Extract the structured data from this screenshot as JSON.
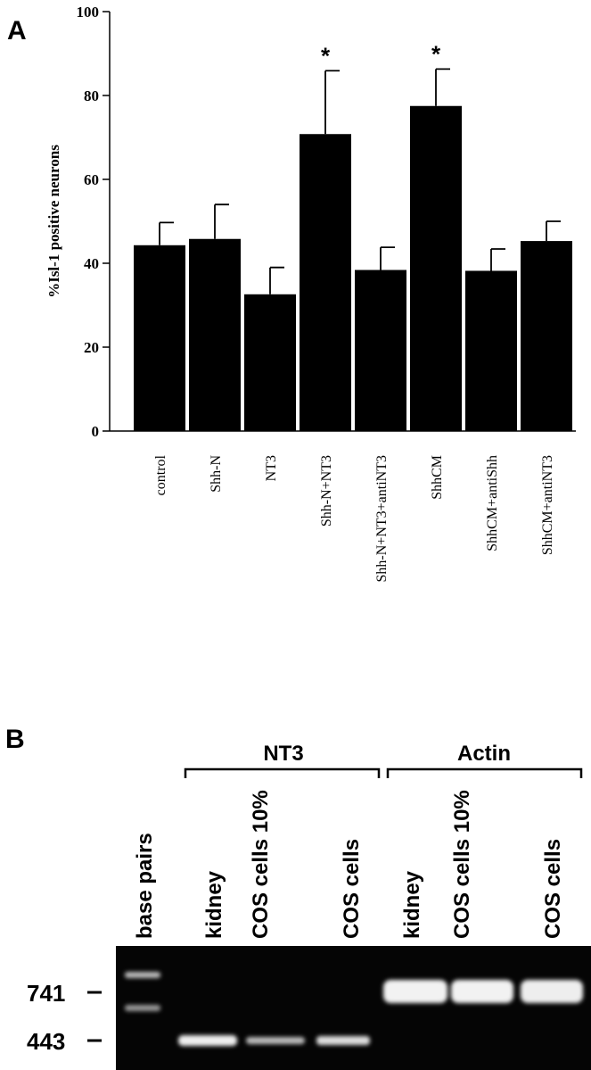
{
  "panel_a_label": "A",
  "chart_data": {
    "type": "bar",
    "y_label": "%Isl-1 positive neurons",
    "categories": [
      "control",
      "Shh-N",
      "NT3",
      "Shh-N+NT3",
      "Shh-N+NT3+antiNT3",
      "ShhCM",
      "ShhCM+antiShh",
      "ShhCM+antiNT3"
    ],
    "values": [
      44.3,
      45.8,
      32.6,
      70.8,
      38.4,
      77.5,
      38.2,
      45.3
    ],
    "errors": [
      5.4,
      8.2,
      6.4,
      15.1,
      5.4,
      8.8,
      5.2,
      4.7
    ],
    "annotations": [
      {
        "text": "*",
        "category": "Shh-N+NT3"
      },
      {
        "text": "*",
        "category": "ShhCM"
      }
    ],
    "color": "#000000",
    "ylim": [
      0,
      100
    ],
    "yticks": [
      0,
      20,
      40,
      60,
      80,
      100
    ]
  },
  "gel": {
    "panel_label": "B",
    "groups": [
      {
        "label": "NT3"
      },
      {
        "label": "Actin"
      }
    ],
    "lanes": [
      "base pairs",
      "kidney",
      "COS cells 10%",
      "COS cells",
      "kidney",
      "COS cells 10%",
      "COS cells"
    ],
    "markers": [
      "741",
      "443"
    ]
  }
}
